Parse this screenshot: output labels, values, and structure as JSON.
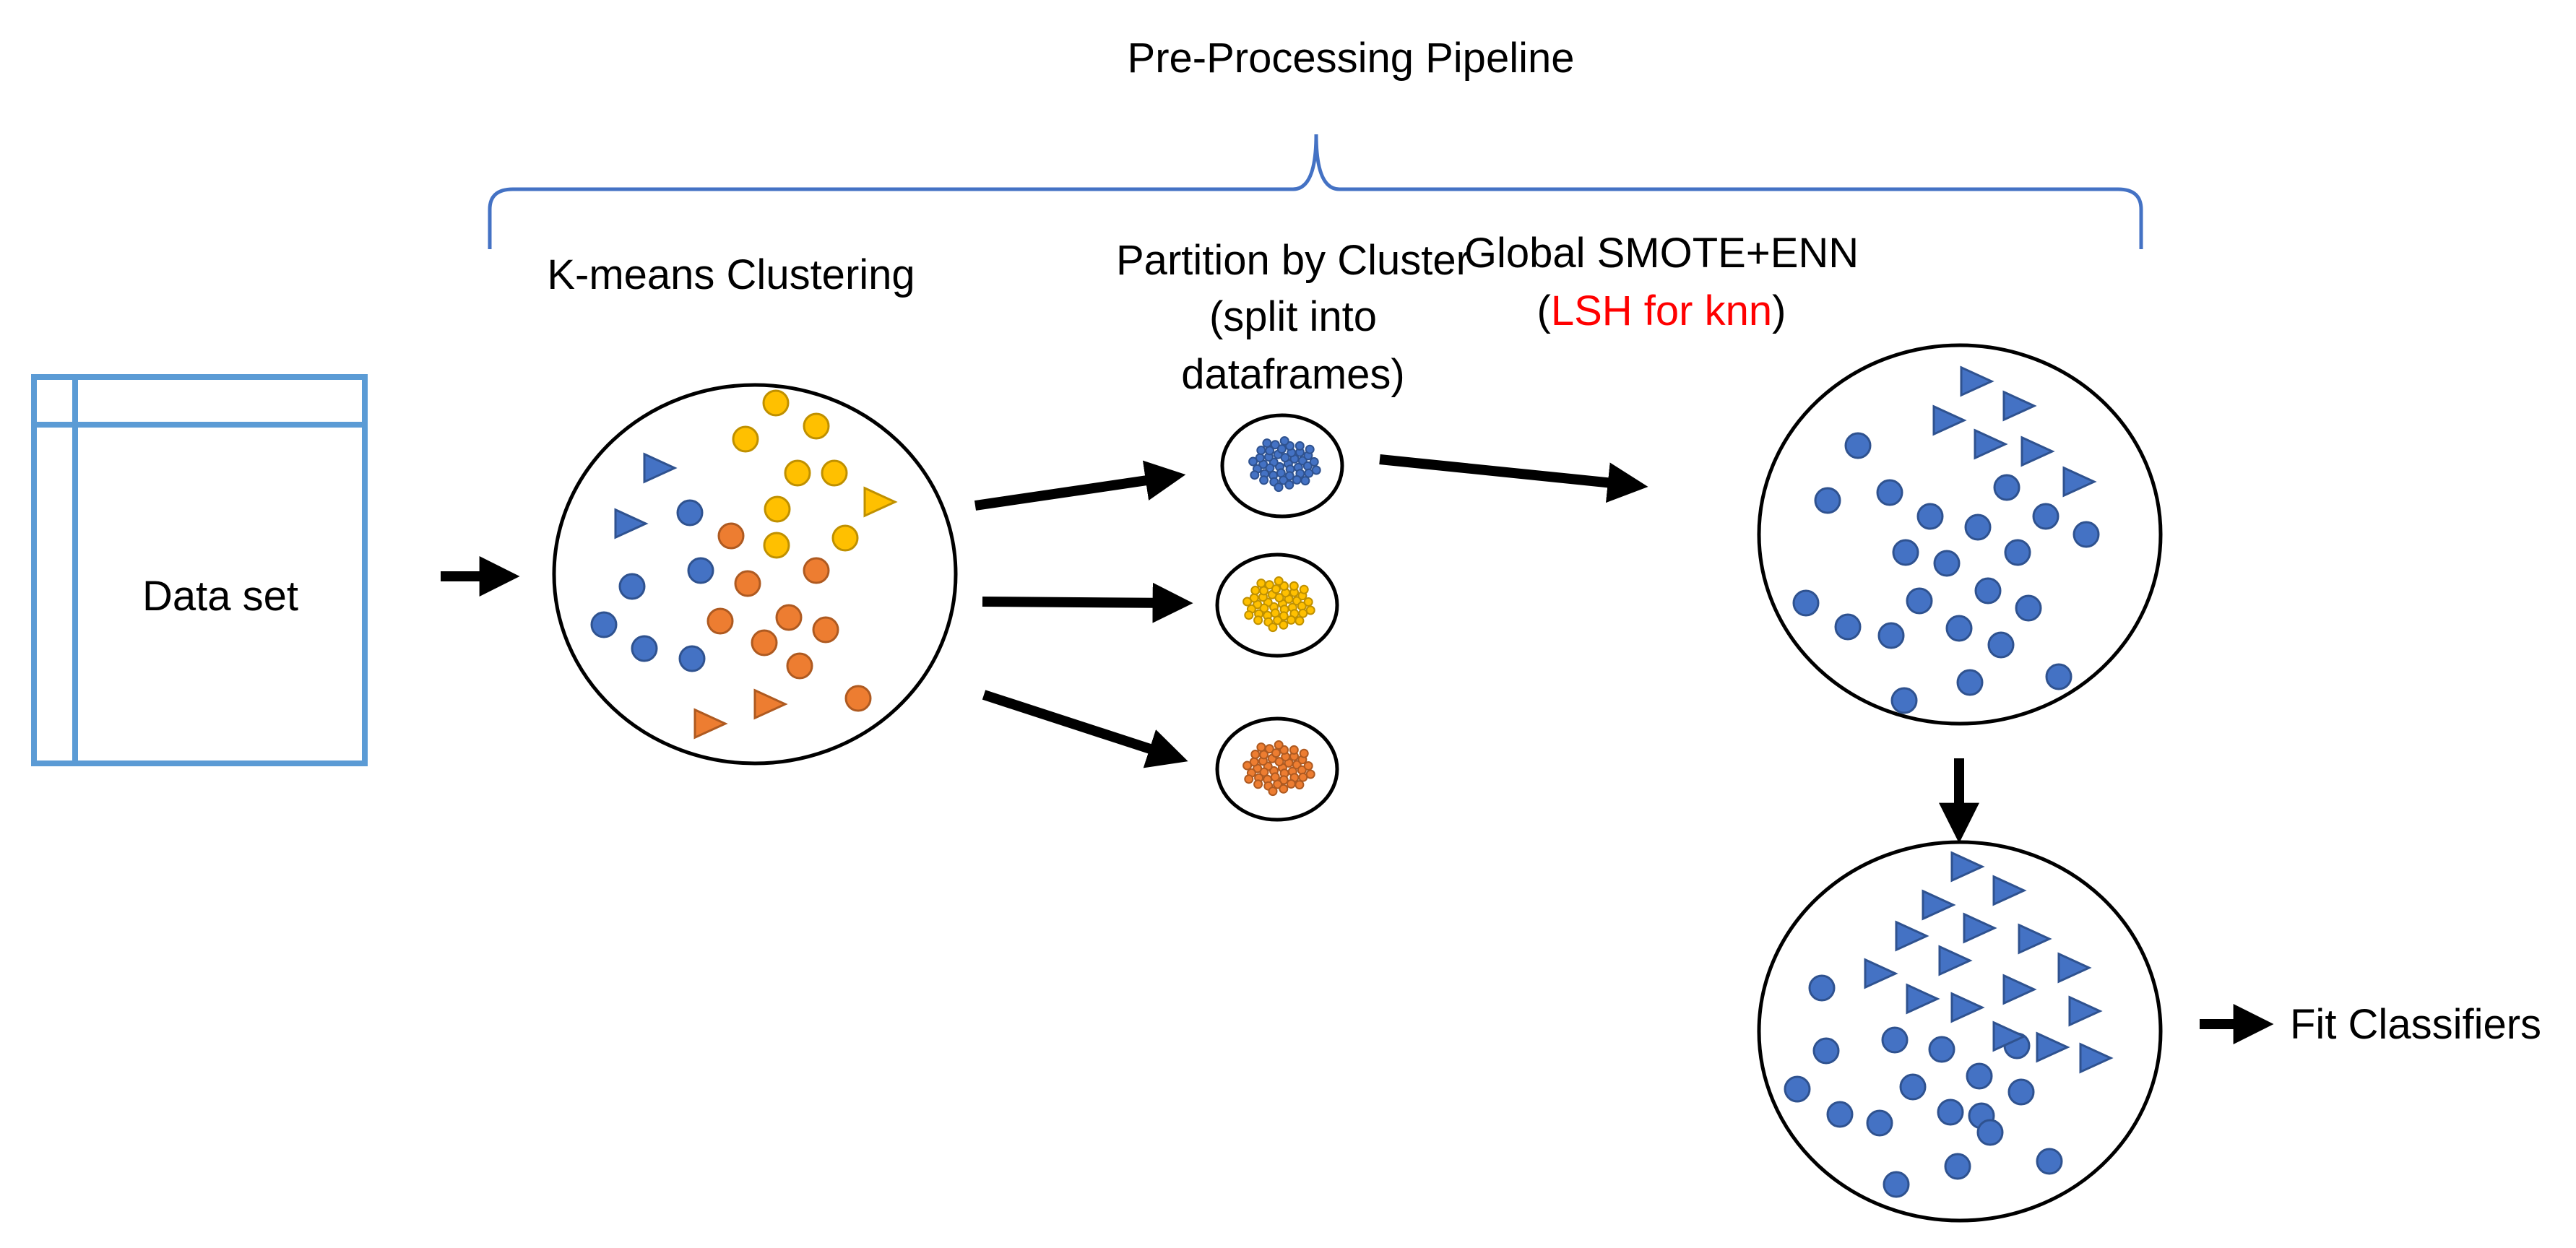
{
  "title": "Pre-Processing Pipeline",
  "steps": {
    "kmeans": "K-means Clustering",
    "partition": [
      "Partition by Cluster",
      "(split into",
      "dataframes)"
    ],
    "smote": {
      "line1": "Global SMOTE+ENN",
      "open_paren": "(",
      "highlight": "LSH for knn",
      "close_paren": ")"
    }
  },
  "dataset_label": "Data set",
  "output_label": "Fit Classifiers",
  "colors": {
    "brace": "#4472c4",
    "table": "#5b9bd5",
    "blue": "#4472c4",
    "blue_stroke": "#2f528f",
    "yellow": "#ffc000",
    "yellow_stroke": "#bf9000",
    "orange": "#ed7d31",
    "orange_stroke": "#ae5a21",
    "highlight": "#ff0000"
  },
  "icons": [
    "circle-marker",
    "triangle-marker",
    "arrow"
  ]
}
